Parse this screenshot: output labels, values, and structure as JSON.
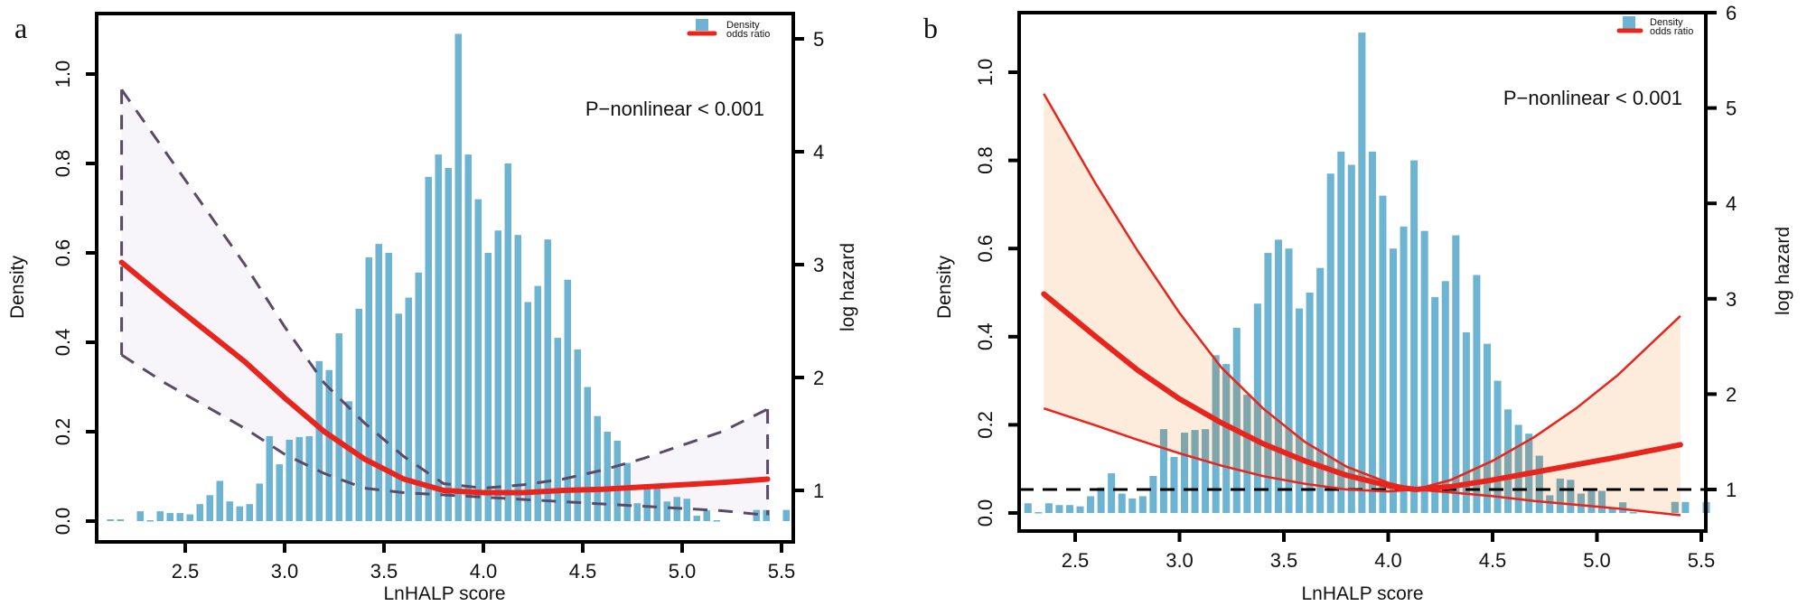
{
  "chart_data": [
    {
      "type": "bar",
      "panel_label": "a",
      "xlabel": "LnHALP score",
      "ylabel": "Density",
      "y2label": "log hazard",
      "annotation": "P−nonlinear < 0.001",
      "legend": {
        "placement": "top-right",
        "entries": [
          "Density",
          "odds ratio"
        ]
      },
      "xlim": [
        2.05,
        5.55
      ],
      "ylim": [
        -0.04,
        1.12
      ],
      "y2lim": [
        0.7,
        5.25
      ],
      "xticks": [
        "2.5",
        "3.0",
        "3.5",
        "4.0",
        "4.5",
        "5.0",
        "5.5"
      ],
      "yticks": [
        "0.0",
        "0.2",
        "0.4",
        "0.6",
        "0.8",
        "1.0"
      ],
      "y2ticks": [
        "1",
        "2",
        "3",
        "4",
        "5"
      ],
      "histogram": {
        "bin_width": 0.05,
        "bins_start": [
          2.1,
          2.15,
          2.2,
          2.25,
          2.3,
          2.35,
          2.4,
          2.45,
          2.5,
          2.55,
          2.6,
          2.65,
          2.7,
          2.75,
          2.8,
          2.85,
          2.9,
          2.95,
          3.0,
          3.05,
          3.1,
          3.15,
          3.2,
          3.25,
          3.3,
          3.35,
          3.4,
          3.45,
          3.5,
          3.55,
          3.6,
          3.65,
          3.7,
          3.75,
          3.8,
          3.85,
          3.9,
          3.95,
          4.0,
          4.05,
          4.1,
          4.15,
          4.2,
          4.25,
          4.3,
          4.35,
          4.4,
          4.45,
          4.5,
          4.55,
          4.6,
          4.65,
          4.7,
          4.75,
          4.8,
          4.85,
          4.9,
          4.95,
          5.0,
          5.05,
          5.1,
          5.15,
          5.2,
          5.25,
          5.3,
          5.35,
          5.4,
          5.45,
          5.5
        ],
        "density": [
          0.004,
          0.004,
          0.0,
          0.022,
          0.002,
          0.022,
          0.018,
          0.018,
          0.015,
          0.038,
          0.058,
          0.09,
          0.044,
          0.033,
          0.038,
          0.084,
          0.19,
          0.127,
          0.182,
          0.188,
          0.19,
          0.358,
          0.338,
          0.42,
          0.268,
          0.475,
          0.59,
          0.62,
          0.6,
          0.464,
          0.5,
          0.556,
          0.77,
          0.82,
          0.79,
          1.09,
          0.82,
          0.72,
          0.6,
          0.65,
          0.8,
          0.64,
          0.49,
          0.526,
          0.63,
          0.41,
          0.54,
          0.384,
          0.3,
          0.235,
          0.2,
          0.18,
          0.13,
          0.04,
          0.078,
          0.075,
          0.044,
          0.054,
          0.05,
          0.012,
          0.024,
          0.002,
          0.0,
          0.0,
          0.0,
          0.025,
          0.025,
          0.0,
          0.025
        ]
      },
      "spline": {
        "x": [
          2.18,
          2.4,
          2.6,
          2.8,
          3.0,
          3.2,
          3.4,
          3.6,
          3.8,
          4.0,
          4.2,
          4.4,
          4.6,
          4.8,
          5.0,
          5.2,
          5.43
        ],
        "or": [
          3.02,
          2.7,
          2.42,
          2.14,
          1.82,
          1.52,
          1.28,
          1.1,
          1.0,
          0.98,
          0.98,
          1.0,
          1.01,
          1.03,
          1.05,
          1.07,
          1.1
        ],
        "upper": [
          4.55,
          4.0,
          3.5,
          3.0,
          2.45,
          1.95,
          1.6,
          1.3,
          1.06,
          1.02,
          1.05,
          1.1,
          1.18,
          1.28,
          1.4,
          1.52,
          1.72
        ],
        "lower": [
          2.2,
          1.95,
          1.75,
          1.55,
          1.32,
          1.15,
          1.02,
          0.98,
          0.96,
          0.94,
          0.92,
          0.9,
          0.88,
          0.86,
          0.84,
          0.82,
          0.78
        ]
      }
    },
    {
      "type": "bar",
      "panel_label": "b",
      "xlabel": "LnHALP score",
      "ylabel": "Density",
      "y2label": "log hazard",
      "annotation": "P−nonlinear < 0.001",
      "legend": {
        "placement": "top-right",
        "entries": [
          "Density",
          "odds ratio"
        ]
      },
      "reference_line": 1,
      "xlim": [
        2.22,
        5.55
      ],
      "ylim": [
        -0.04,
        1.12
      ],
      "y2lim": [
        0.6,
        6.0
      ],
      "xticks": [
        "2.5",
        "3.0",
        "3.5",
        "4.0",
        "4.5",
        "5.0",
        "5.5"
      ],
      "yticks": [
        "0.0",
        "0.2",
        "0.4",
        "0.6",
        "0.8",
        "1.0"
      ],
      "y2ticks": [
        "1",
        "2",
        "3",
        "4",
        "5",
        "6"
      ],
      "histogram": {
        "bin_width": 0.05,
        "bins_start": [
          2.25,
          2.3,
          2.35,
          2.4,
          2.45,
          2.5,
          2.55,
          2.6,
          2.65,
          2.7,
          2.75,
          2.8,
          2.85,
          2.9,
          2.95,
          3.0,
          3.05,
          3.1,
          3.15,
          3.2,
          3.25,
          3.3,
          3.35,
          3.4,
          3.45,
          3.5,
          3.55,
          3.6,
          3.65,
          3.7,
          3.75,
          3.8,
          3.85,
          3.9,
          3.95,
          4.0,
          4.05,
          4.1,
          4.15,
          4.2,
          4.25,
          4.3,
          4.35,
          4.4,
          4.45,
          4.5,
          4.55,
          4.6,
          4.65,
          4.7,
          4.75,
          4.8,
          4.85,
          4.9,
          4.95,
          5.0,
          5.05,
          5.1,
          5.15,
          5.2,
          5.25,
          5.3,
          5.35,
          5.4,
          5.45,
          5.5
        ],
        "density": [
          0.022,
          0.002,
          0.022,
          0.018,
          0.018,
          0.015,
          0.038,
          0.058,
          0.09,
          0.044,
          0.033,
          0.038,
          0.084,
          0.19,
          0.127,
          0.182,
          0.188,
          0.19,
          0.358,
          0.338,
          0.42,
          0.268,
          0.475,
          0.59,
          0.62,
          0.6,
          0.464,
          0.5,
          0.556,
          0.77,
          0.82,
          0.79,
          1.09,
          0.82,
          0.72,
          0.6,
          0.65,
          0.8,
          0.64,
          0.49,
          0.526,
          0.63,
          0.41,
          0.54,
          0.384,
          0.3,
          0.235,
          0.2,
          0.18,
          0.13,
          0.04,
          0.078,
          0.075,
          0.044,
          0.054,
          0.05,
          0.012,
          0.024,
          0.002,
          0.0,
          0.0,
          0.0,
          0.025,
          0.025,
          0.0,
          0.025
        ]
      },
      "spline": {
        "x": [
          2.35,
          2.6,
          2.8,
          3.0,
          3.2,
          3.4,
          3.6,
          3.8,
          4.0,
          4.13,
          4.3,
          4.5,
          4.7,
          4.9,
          5.1,
          5.4
        ],
        "or": [
          3.05,
          2.6,
          2.25,
          1.95,
          1.7,
          1.48,
          1.3,
          1.15,
          1.04,
          1.0,
          1.03,
          1.1,
          1.18,
          1.26,
          1.34,
          1.47
        ],
        "upper": [
          5.15,
          4.2,
          3.5,
          2.85,
          2.28,
          1.85,
          1.5,
          1.24,
          1.07,
          1.0,
          1.1,
          1.3,
          1.55,
          1.85,
          2.2,
          2.82
        ],
        "lower": [
          1.85,
          1.67,
          1.52,
          1.38,
          1.25,
          1.14,
          1.06,
          1.0,
          0.98,
          1.0,
          0.97,
          0.93,
          0.88,
          0.84,
          0.8,
          0.73
        ]
      }
    }
  ],
  "colors": {
    "bar": "#6db4d2",
    "bar_overlap": "#7fa5ad",
    "spline": "#e8241c",
    "ci_dashed": "#5a4a66",
    "ci_fill_b": "#fdecdc",
    "ci_fill_a": "#f7f4fa"
  }
}
